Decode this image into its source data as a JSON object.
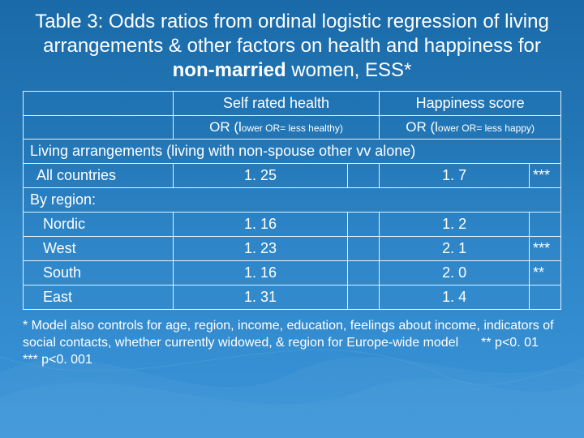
{
  "title_html": "Table 3: Odds ratios from ordinal logistic regression of living arrangements & other factors on health and happiness for <b>non-married</b> women, ESS*",
  "headers": {
    "col1_main": "Self rated health",
    "col1_sub_prefix": "OR (l",
    "col1_sub_small": "ower OR= less healthy)",
    "col2_main": "Happiness score",
    "col2_sub_prefix": "OR (l",
    "col2_sub_small": "ower OR= less happy)"
  },
  "section_label": "Living arrangements (living with non-spouse other vv alone)",
  "rows": [
    {
      "label": "All countries",
      "indent": false,
      "health": "1. 25",
      "health_sig": "",
      "happy": "1. 7",
      "happy_sig": "***"
    }
  ],
  "byregion_label": "By region:",
  "region_rows": [
    {
      "label": "Nordic",
      "health": "1. 16",
      "health_sig": "",
      "happy": "1. 2",
      "happy_sig": ""
    },
    {
      "label": "West",
      "health": "1. 23",
      "health_sig": "",
      "happy": "2. 1",
      "happy_sig": "***"
    },
    {
      "label": "South",
      "health": "1. 16",
      "health_sig": "",
      "happy": "2. 0",
      "happy_sig": "**"
    },
    {
      "label": "East",
      "health": "1. 31",
      "health_sig": "",
      "happy": "1. 4",
      "happy_sig": ""
    }
  ],
  "footnote_line1": "* Model also controls for age, region, income, education, feelings about income, indicators of social contacts, whether currently widowed, & region for Europe-wide model",
  "footnote_sig1": "** p<0. 01",
  "footnote_sig2": "*** p<0. 001",
  "colors": {
    "bg_top": "#1a6aa8",
    "bg_bottom": "#3a94d8",
    "border": "#e8f0f8",
    "text": "#ffffff"
  }
}
